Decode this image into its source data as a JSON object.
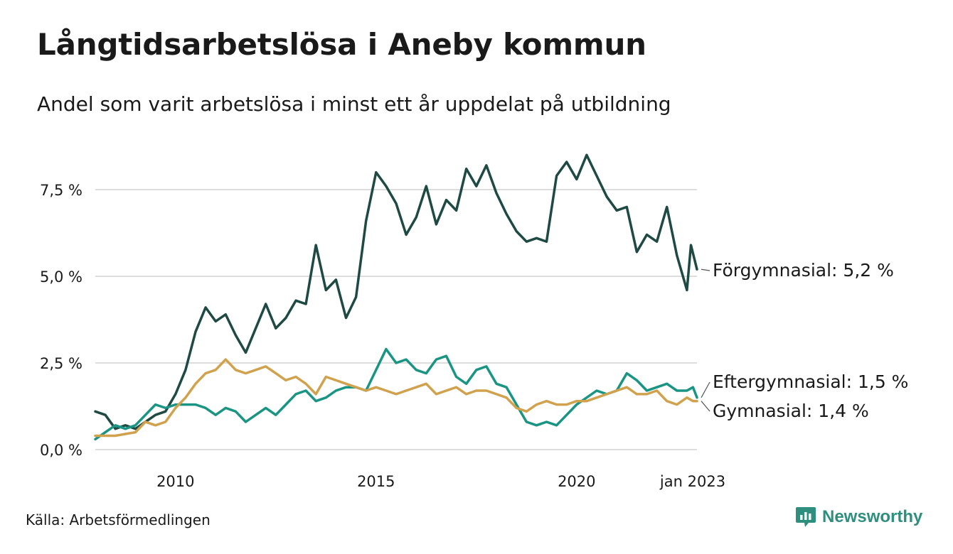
{
  "title": "Långtidsarbetslösa i Aneby kommun",
  "subtitle": "Andel som varit arbetslösa i minst ett år uppdelat på utbildning",
  "source": "Källa: Arbetsförmedlingen",
  "brand": {
    "name": "Newsworthy",
    "icon": "newsworthy-chart-bubble-icon",
    "color": "#2f8f7e"
  },
  "chart_data": {
    "type": "line",
    "x_unit": "year (decimal, monthly data)",
    "ylim": [
      0,
      8.7
    ],
    "xlim": [
      2008.0,
      2023.0
    ],
    "grid": true,
    "y_ticks": [
      0,
      2.5,
      5.0,
      7.5
    ],
    "y_tick_labels": [
      "0,0 %",
      "2,5 %",
      "5,0 %",
      "7,5 %"
    ],
    "x_ticks": [
      2010,
      2015,
      2020,
      2023
    ],
    "x_tick_labels": [
      "2010",
      "2015",
      "2020",
      "jan 2023"
    ],
    "series": [
      {
        "name": "Förgymnasial",
        "end_label": "Förgymnasial: 5,2 %",
        "color": "#1f4a44",
        "points": [
          [
            2008.0,
            1.1
          ],
          [
            2008.25,
            1.0
          ],
          [
            2008.5,
            0.6
          ],
          [
            2008.75,
            0.7
          ],
          [
            2009.0,
            0.6
          ],
          [
            2009.25,
            0.8
          ],
          [
            2009.5,
            1.0
          ],
          [
            2009.75,
            1.1
          ],
          [
            2010.0,
            1.6
          ],
          [
            2010.25,
            2.3
          ],
          [
            2010.5,
            3.4
          ],
          [
            2010.75,
            4.1
          ],
          [
            2011.0,
            3.7
          ],
          [
            2011.25,
            3.9
          ],
          [
            2011.5,
            3.3
          ],
          [
            2011.75,
            2.8
          ],
          [
            2012.0,
            3.5
          ],
          [
            2012.25,
            4.2
          ],
          [
            2012.5,
            3.5
          ],
          [
            2012.75,
            3.8
          ],
          [
            2013.0,
            4.3
          ],
          [
            2013.25,
            4.2
          ],
          [
            2013.5,
            5.9
          ],
          [
            2013.75,
            4.6
          ],
          [
            2014.0,
            4.9
          ],
          [
            2014.25,
            3.8
          ],
          [
            2014.5,
            4.4
          ],
          [
            2014.75,
            6.6
          ],
          [
            2015.0,
            8.0
          ],
          [
            2015.25,
            7.6
          ],
          [
            2015.5,
            7.1
          ],
          [
            2015.75,
            6.2
          ],
          [
            2016.0,
            6.7
          ],
          [
            2016.25,
            7.6
          ],
          [
            2016.5,
            6.5
          ],
          [
            2016.75,
            7.2
          ],
          [
            2017.0,
            6.9
          ],
          [
            2017.25,
            8.1
          ],
          [
            2017.5,
            7.6
          ],
          [
            2017.75,
            8.2
          ],
          [
            2018.0,
            7.4
          ],
          [
            2018.25,
            6.8
          ],
          [
            2018.5,
            6.3
          ],
          [
            2018.75,
            6.0
          ],
          [
            2019.0,
            6.1
          ],
          [
            2019.25,
            6.0
          ],
          [
            2019.5,
            7.9
          ],
          [
            2019.75,
            8.3
          ],
          [
            2020.0,
            7.8
          ],
          [
            2020.25,
            8.5
          ],
          [
            2020.5,
            7.9
          ],
          [
            2020.75,
            7.3
          ],
          [
            2021.0,
            6.9
          ],
          [
            2021.25,
            7.0
          ],
          [
            2021.5,
            5.7
          ],
          [
            2021.75,
            6.2
          ],
          [
            2022.0,
            6.0
          ],
          [
            2022.25,
            7.0
          ],
          [
            2022.5,
            5.6
          ],
          [
            2022.75,
            4.6
          ],
          [
            2022.85,
            5.9
          ],
          [
            2023.0,
            5.2
          ]
        ]
      },
      {
        "name": "Eftergymnasial",
        "end_label": "Eftergymnasial: 1,5 %",
        "color": "#1a9483",
        "points": [
          [
            2008.0,
            0.3
          ],
          [
            2008.25,
            0.5
          ],
          [
            2008.5,
            0.7
          ],
          [
            2008.75,
            0.6
          ],
          [
            2009.0,
            0.7
          ],
          [
            2009.25,
            1.0
          ],
          [
            2009.5,
            1.3
          ],
          [
            2009.75,
            1.2
          ],
          [
            2010.0,
            1.3
          ],
          [
            2010.5,
            1.3
          ],
          [
            2010.75,
            1.2
          ],
          [
            2011.0,
            1.0
          ],
          [
            2011.25,
            1.2
          ],
          [
            2011.5,
            1.1
          ],
          [
            2011.75,
            0.8
          ],
          [
            2012.0,
            1.0
          ],
          [
            2012.25,
            1.2
          ],
          [
            2012.5,
            1.0
          ],
          [
            2012.75,
            1.3
          ],
          [
            2013.0,
            1.6
          ],
          [
            2013.25,
            1.7
          ],
          [
            2013.5,
            1.4
          ],
          [
            2013.75,
            1.5
          ],
          [
            2014.0,
            1.7
          ],
          [
            2014.25,
            1.8
          ],
          [
            2014.5,
            1.8
          ],
          [
            2014.75,
            1.7
          ],
          [
            2015.0,
            2.3
          ],
          [
            2015.25,
            2.9
          ],
          [
            2015.5,
            2.5
          ],
          [
            2015.75,
            2.6
          ],
          [
            2016.0,
            2.3
          ],
          [
            2016.25,
            2.2
          ],
          [
            2016.5,
            2.6
          ],
          [
            2016.75,
            2.7
          ],
          [
            2017.0,
            2.1
          ],
          [
            2017.25,
            1.9
          ],
          [
            2017.5,
            2.3
          ],
          [
            2017.75,
            2.4
          ],
          [
            2018.0,
            1.9
          ],
          [
            2018.25,
            1.8
          ],
          [
            2018.5,
            1.3
          ],
          [
            2018.75,
            0.8
          ],
          [
            2019.0,
            0.7
          ],
          [
            2019.25,
            0.8
          ],
          [
            2019.5,
            0.7
          ],
          [
            2019.75,
            1.0
          ],
          [
            2020.0,
            1.3
          ],
          [
            2020.25,
            1.5
          ],
          [
            2020.5,
            1.7
          ],
          [
            2020.75,
            1.6
          ],
          [
            2021.0,
            1.7
          ],
          [
            2021.25,
            2.2
          ],
          [
            2021.5,
            2.0
          ],
          [
            2021.75,
            1.7
          ],
          [
            2022.0,
            1.8
          ],
          [
            2022.25,
            1.9
          ],
          [
            2022.5,
            1.7
          ],
          [
            2022.75,
            1.7
          ],
          [
            2022.9,
            1.8
          ],
          [
            2023.0,
            1.5
          ]
        ]
      },
      {
        "name": "Gymnasial",
        "end_label": "Gymnasial: 1,4 %",
        "color": "#d1a24e",
        "points": [
          [
            2008.0,
            0.4
          ],
          [
            2008.25,
            0.4
          ],
          [
            2008.5,
            0.4
          ],
          [
            2008.75,
            0.45
          ],
          [
            2009.0,
            0.5
          ],
          [
            2009.25,
            0.8
          ],
          [
            2009.5,
            0.7
          ],
          [
            2009.75,
            0.8
          ],
          [
            2010.0,
            1.2
          ],
          [
            2010.25,
            1.5
          ],
          [
            2010.5,
            1.9
          ],
          [
            2010.75,
            2.2
          ],
          [
            2011.0,
            2.3
          ],
          [
            2011.25,
            2.6
          ],
          [
            2011.5,
            2.3
          ],
          [
            2011.75,
            2.2
          ],
          [
            2012.0,
            2.3
          ],
          [
            2012.25,
            2.4
          ],
          [
            2012.5,
            2.2
          ],
          [
            2012.75,
            2.0
          ],
          [
            2013.0,
            2.1
          ],
          [
            2013.25,
            1.9
          ],
          [
            2013.5,
            1.6
          ],
          [
            2013.75,
            2.1
          ],
          [
            2014.0,
            2.0
          ],
          [
            2014.25,
            1.9
          ],
          [
            2014.5,
            1.8
          ],
          [
            2014.75,
            1.7
          ],
          [
            2015.0,
            1.8
          ],
          [
            2015.25,
            1.7
          ],
          [
            2015.5,
            1.6
          ],
          [
            2015.75,
            1.7
          ],
          [
            2016.0,
            1.8
          ],
          [
            2016.25,
            1.9
          ],
          [
            2016.5,
            1.6
          ],
          [
            2016.75,
            1.7
          ],
          [
            2017.0,
            1.8
          ],
          [
            2017.25,
            1.6
          ],
          [
            2017.5,
            1.7
          ],
          [
            2017.75,
            1.7
          ],
          [
            2018.0,
            1.6
          ],
          [
            2018.25,
            1.5
          ],
          [
            2018.5,
            1.2
          ],
          [
            2018.75,
            1.1
          ],
          [
            2019.0,
            1.3
          ],
          [
            2019.25,
            1.4
          ],
          [
            2019.5,
            1.3
          ],
          [
            2019.75,
            1.3
          ],
          [
            2020.0,
            1.4
          ],
          [
            2020.25,
            1.4
          ],
          [
            2020.5,
            1.5
          ],
          [
            2020.75,
            1.6
          ],
          [
            2021.0,
            1.7
          ],
          [
            2021.25,
            1.8
          ],
          [
            2021.5,
            1.6
          ],
          [
            2021.75,
            1.6
          ],
          [
            2022.0,
            1.7
          ],
          [
            2022.25,
            1.4
          ],
          [
            2022.5,
            1.3
          ],
          [
            2022.75,
            1.5
          ],
          [
            2022.9,
            1.4
          ],
          [
            2023.0,
            1.4
          ]
        ]
      }
    ]
  }
}
